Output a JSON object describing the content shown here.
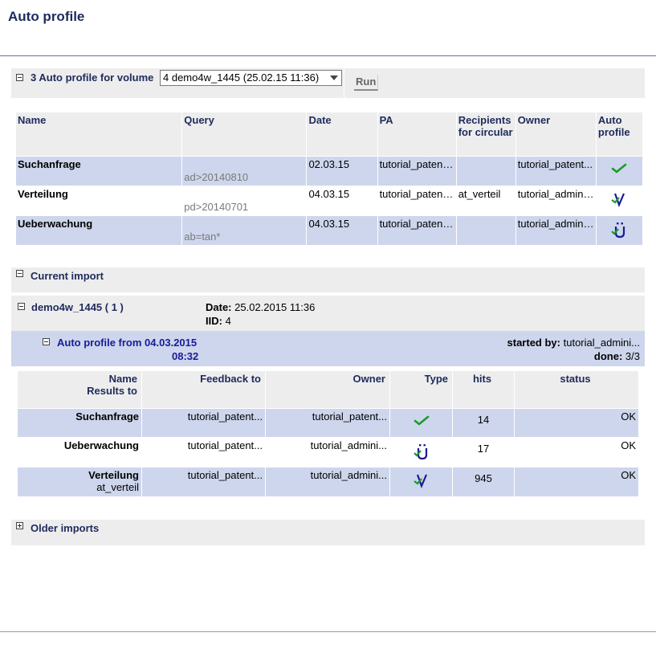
{
  "page_title": "Auto profile",
  "profiles_section": {
    "label": "3 Auto profile for volume",
    "volume_select": "4 demo4w_1445 (25.02.15 11:36)",
    "run_label": "Run"
  },
  "profiles_table": {
    "headers": [
      "Name",
      "Query",
      "Date",
      "PA",
      "Recipients for circular",
      "Owner",
      "Auto profile"
    ],
    "rows": [
      {
        "name": "Suchanfrage",
        "query": "ad>20140810",
        "date": "02.03.15",
        "pa": "tutorial_patent...",
        "recipients": "",
        "owner": "tutorial_patent...",
        "icon": "check-icon"
      },
      {
        "name": "Verteilung",
        "query": "pd>20140701",
        "date": "04.03.15",
        "pa": "tutorial_patent...",
        "recipients": "at_verteil",
        "owner": "tutorial_admini...",
        "icon": "v-distribution-icon"
      },
      {
        "name": "Ueberwachung",
        "query": "ab=tan*",
        "date": "04.03.15",
        "pa": "tutorial_patent...",
        "recipients": "",
        "owner": "tutorial_admini...",
        "icon": "u-monitoring-icon"
      }
    ]
  },
  "current_import": {
    "label": "Current import",
    "volume": "demo4w_1445 ( 1 )",
    "date_label": "Date:",
    "date_value": "25.02.2015 11:36",
    "iid_label": "IID:",
    "iid_value": "4",
    "auto_profile_line1": "Auto profile from 04.03.2015",
    "auto_profile_line2": "08:32",
    "started_by_label": "started by:",
    "started_by_value": "tutorial_admini...",
    "done_label": "done:",
    "done_value": "3/3"
  },
  "results_table": {
    "headers": [
      "Name",
      "Results to",
      "Feedback to",
      "Owner",
      "Type",
      "hits",
      "status"
    ],
    "rows": [
      {
        "name": "Suchanfrage",
        "results_to": "",
        "feedback": "tutorial_patent...",
        "owner": "tutorial_patent...",
        "icon": "check-icon",
        "hits": "14",
        "status": "OK"
      },
      {
        "name": "Ueberwachung",
        "results_to": "",
        "feedback": "tutorial_patent...",
        "owner": "tutorial_admini...",
        "icon": "u-monitoring-icon",
        "hits": "17",
        "status": "OK"
      },
      {
        "name": "Verteilung",
        "results_to": "at_verteil",
        "feedback": "tutorial_patent...",
        "owner": "tutorial_admini...",
        "icon": "v-distribution-icon",
        "hits": "945",
        "status": "OK"
      }
    ]
  },
  "older_imports": {
    "label": "Older imports"
  },
  "colors": {
    "heading": "#1e2a5c",
    "row_highlight": "#cdd6ec",
    "panel": "#ededed",
    "link": "#1a1a9a"
  }
}
